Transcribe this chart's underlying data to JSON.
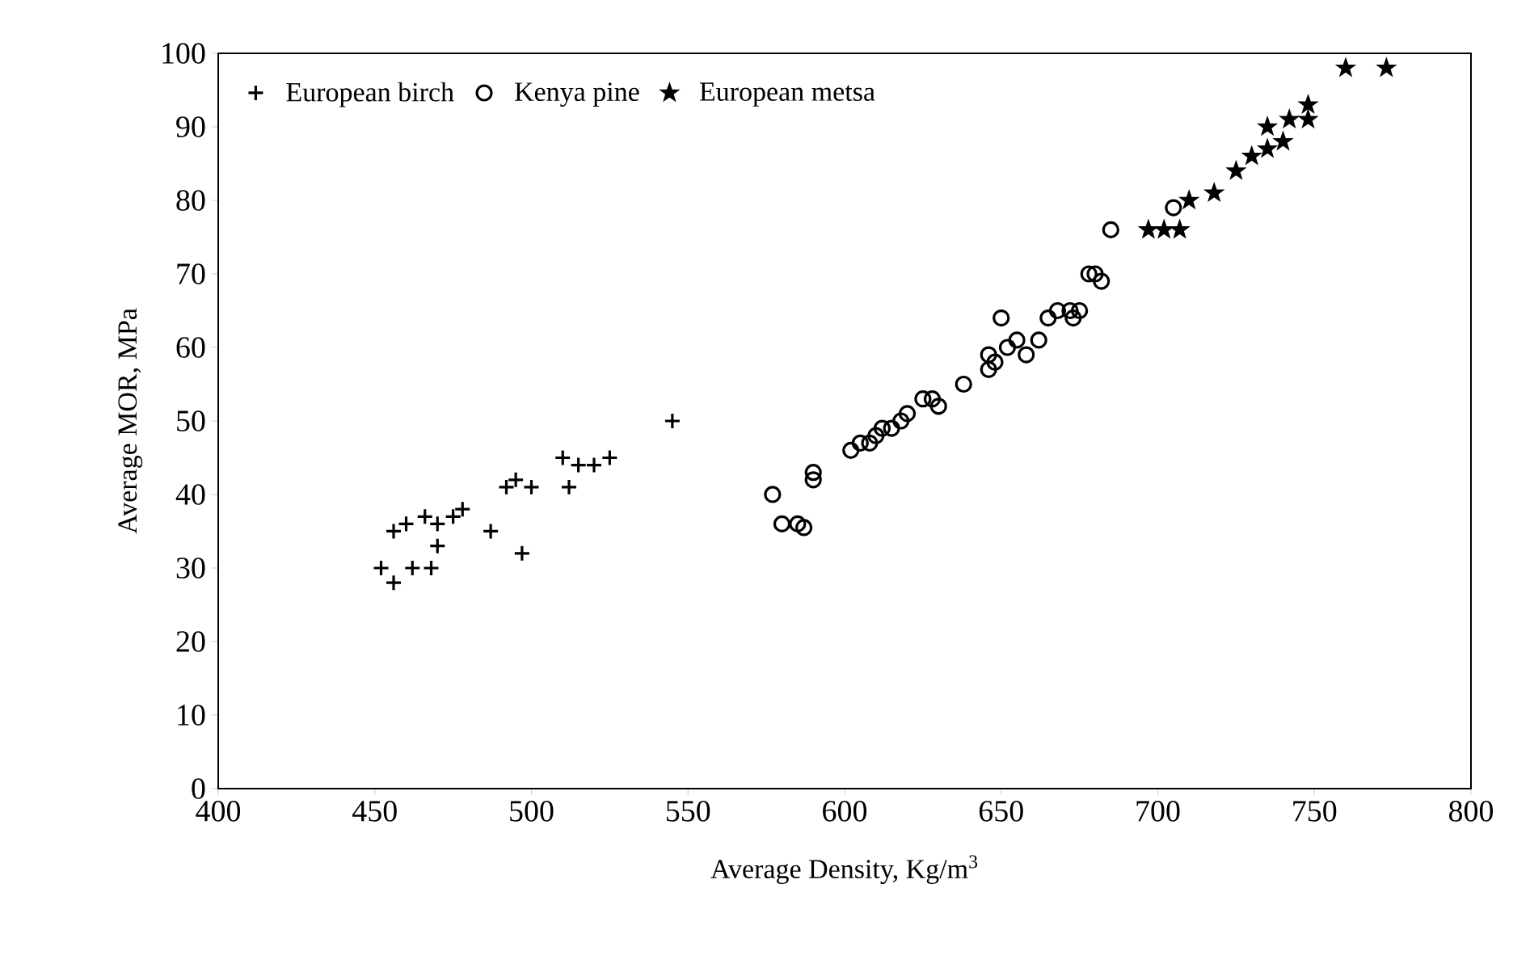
{
  "chart_data": {
    "type": "scatter",
    "xlabel": "Average Density, Kg/m$^{3}$",
    "ylabel": "Average MOR, MPa",
    "xlim": [
      400,
      800
    ],
    "ylim": [
      0,
      100
    ],
    "xticks": [
      400,
      450,
      500,
      550,
      600,
      650,
      700,
      750,
      800
    ],
    "yticks": [
      0,
      10,
      20,
      30,
      40,
      50,
      60,
      70,
      80,
      90,
      100
    ],
    "legend": "top left",
    "grid": false,
    "series": [
      {
        "name": "European birch",
        "color": "#000000",
        "marker": "cross",
        "x": [
          452,
          456,
          456,
          460,
          462,
          468,
          466,
          470,
          470,
          475,
          478,
          487,
          492,
          495,
          497,
          500,
          510,
          512,
          515,
          520,
          525,
          545
        ],
        "values": [
          30,
          28,
          35,
          36,
          30,
          30,
          37,
          33,
          36,
          37,
          38,
          35,
          41,
          42,
          32,
          41,
          45,
          41,
          44,
          44,
          45,
          50
        ]
      },
      {
        "name": "Kenya pine",
        "color": "#000000",
        "marker": "circle",
        "x": [
          577,
          580,
          585,
          587,
          590,
          590,
          602,
          605,
          608,
          610,
          612,
          615,
          618,
          620,
          625,
          628,
          630,
          638,
          646,
          646,
          648,
          650,
          652,
          655,
          658,
          662,
          665,
          668,
          672,
          673,
          675,
          678,
          680,
          682,
          685,
          705
        ],
        "values": [
          40,
          36,
          36,
          35.5,
          43,
          42,
          46,
          47,
          47,
          48,
          49,
          49,
          50,
          51,
          53,
          53,
          52,
          55,
          57,
          59,
          58,
          64,
          60,
          61,
          59,
          61,
          64,
          65,
          65,
          64,
          65,
          70,
          70,
          69,
          76,
          79
        ]
      },
      {
        "name": "European metsa",
        "color": "#000000",
        "marker": "star",
        "x": [
          697,
          702,
          707,
          710,
          718,
          725,
          730,
          735,
          735,
          740,
          742,
          748,
          748,
          760,
          773
        ],
        "values": [
          76,
          76,
          76,
          80,
          81,
          84,
          86,
          87,
          90,
          88,
          91,
          91,
          93,
          98,
          98
        ]
      }
    ]
  }
}
